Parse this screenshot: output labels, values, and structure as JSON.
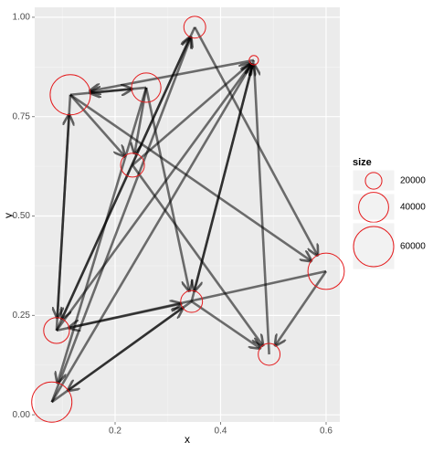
{
  "chart_data": {
    "type": "network",
    "xlabel": "x",
    "ylabel": "y",
    "x": [
      0.351,
      0.463,
      0.259,
      0.115,
      0.233,
      0.6,
      0.345,
      0.089,
      0.492,
      0.08
    ],
    "y": [
      0.975,
      0.892,
      0.823,
      0.805,
      0.628,
      0.361,
      0.285,
      0.212,
      0.152,
      0.032
    ],
    "size": [
      27000,
      12000,
      39000,
      60000,
      30000,
      52000,
      27000,
      33000,
      27000,
      60000
    ],
    "edges": [
      [
        2,
        3
      ],
      [
        3,
        2
      ],
      [
        1,
        3
      ],
      [
        3,
        4
      ],
      [
        2,
        4
      ],
      [
        3,
        5
      ],
      [
        0,
        5
      ],
      [
        0,
        7
      ],
      [
        7,
        0
      ],
      [
        7,
        3
      ],
      [
        3,
        7
      ],
      [
        9,
        1
      ],
      [
        7,
        1
      ],
      [
        6,
        1
      ],
      [
        4,
        1
      ],
      [
        8,
        1
      ],
      [
        2,
        6
      ],
      [
        4,
        8
      ],
      [
        5,
        8
      ],
      [
        5,
        7
      ],
      [
        7,
        6
      ],
      [
        6,
        8
      ],
      [
        9,
        6
      ],
      [
        9,
        0
      ],
      [
        2,
        9
      ],
      [
        6,
        9
      ],
      [
        1,
        6
      ]
    ],
    "node_color": "#e41a1c",
    "edge_color": "#000000",
    "xlim": [
      0.0476,
      0.626
    ],
    "ylim": [
      -0.018,
      1.025
    ],
    "xticks": [
      0.2,
      0.4,
      0.6
    ],
    "yticks": [
      {
        "value": 0,
        "label": "0.00"
      },
      0.25,
      {
        "value": 0.5,
        "label": "0.50"
      },
      0.75,
      {
        "value": 1,
        "label": "1.00"
      }
    ],
    "grid": true,
    "legend": {
      "title": "size",
      "breaks": [
        20000,
        40000,
        60000
      ]
    }
  }
}
